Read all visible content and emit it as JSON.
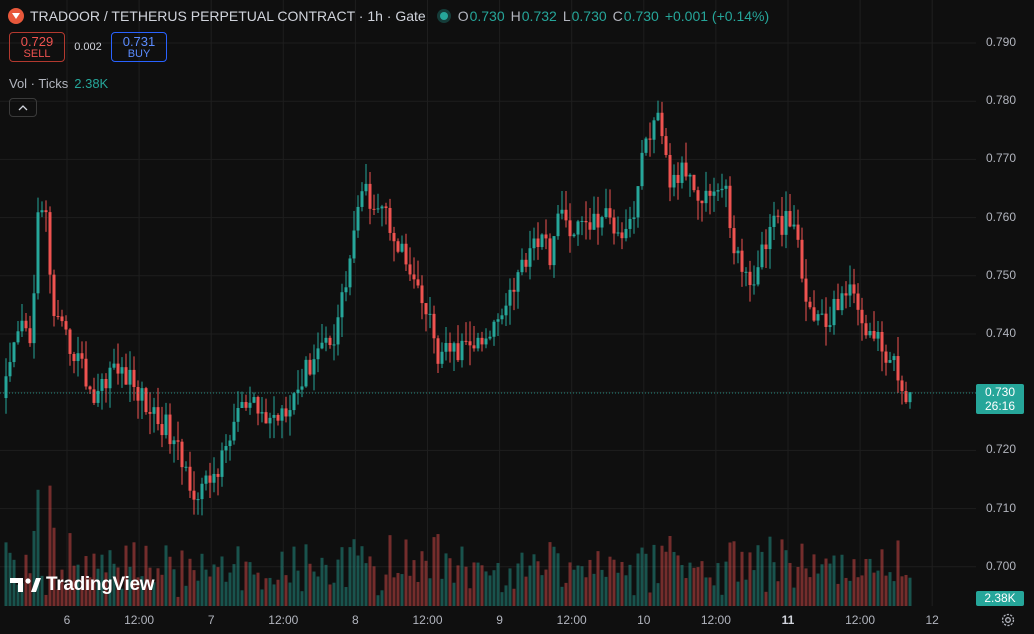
{
  "header": {
    "title": "TRADOOR / TETHERUS PERPETUAL CONTRACT · 1h · Gate",
    "logo_icon": "tradoor-logo-icon",
    "status_icon": "live-dot-icon",
    "ohlc": [
      {
        "label": "O",
        "value": "0.730"
      },
      {
        "label": "H",
        "value": "0.732"
      },
      {
        "label": "L",
        "value": "0.730"
      },
      {
        "label": "C",
        "value": "0.730"
      }
    ],
    "change": "+0.001 (+0.14%)"
  },
  "trade": {
    "sell_price": "0.729",
    "sell_label": "SELL",
    "spread": "0.002",
    "buy_price": "0.731",
    "buy_label": "BUY"
  },
  "volume_legend": {
    "name": "Vol · Ticks",
    "value": "2.38K"
  },
  "watermark": "TradingView",
  "price_axis": {
    "labels": [
      "0.790",
      "0.780",
      "0.770",
      "0.760",
      "0.750",
      "0.740",
      "0.730",
      "0.720",
      "0.710",
      "0.700"
    ],
    "current_price": "0.730",
    "countdown": "26:16",
    "volume_value": "2.38K"
  },
  "time_axis": {
    "labels": [
      {
        "text": "6",
        "bold": false
      },
      {
        "text": "12:00",
        "bold": false
      },
      {
        "text": "7",
        "bold": false
      },
      {
        "text": "12:00",
        "bold": false
      },
      {
        "text": "8",
        "bold": false
      },
      {
        "text": "12:00",
        "bold": false
      },
      {
        "text": "9",
        "bold": false
      },
      {
        "text": "12:00",
        "bold": false
      },
      {
        "text": "10",
        "bold": false
      },
      {
        "text": "12:00",
        "bold": false
      },
      {
        "text": "11",
        "bold": true
      },
      {
        "text": "12:00",
        "bold": false
      },
      {
        "text": "12",
        "bold": false
      }
    ]
  },
  "colors": {
    "up": "#26a69a",
    "down": "#ef5350",
    "background": "#0f0f0f",
    "grid": "#1e1e1e"
  },
  "chart_data": {
    "type": "candlestick",
    "interval": "1h",
    "ylim": [
      0.697,
      0.792
    ],
    "anchors": [
      [
        0,
        0.731
      ],
      [
        4,
        0.742
      ],
      [
        6,
        0.738
      ],
      [
        8,
        0.76
      ],
      [
        10,
        0.76
      ],
      [
        12,
        0.742
      ],
      [
        14,
        0.74
      ],
      [
        18,
        0.736
      ],
      [
        22,
        0.729
      ],
      [
        26,
        0.734
      ],
      [
        30,
        0.733
      ],
      [
        36,
        0.727
      ],
      [
        40,
        0.724
      ],
      [
        44,
        0.718
      ],
      [
        48,
        0.712
      ],
      [
        50,
        0.714
      ],
      [
        54,
        0.718
      ],
      [
        58,
        0.727
      ],
      [
        62,
        0.727
      ],
      [
        66,
        0.725
      ],
      [
        70,
        0.728
      ],
      [
        74,
        0.732
      ],
      [
        78,
        0.738
      ],
      [
        82,
        0.74
      ],
      [
        85,
        0.749
      ],
      [
        88,
        0.762
      ],
      [
        90,
        0.764
      ],
      [
        94,
        0.762
      ],
      [
        98,
        0.756
      ],
      [
        102,
        0.748
      ],
      [
        106,
        0.742
      ],
      [
        108,
        0.736
      ],
      [
        112,
        0.737
      ],
      [
        116,
        0.738
      ],
      [
        120,
        0.738
      ],
      [
        124,
        0.745
      ],
      [
        128,
        0.75
      ],
      [
        132,
        0.757
      ],
      [
        136,
        0.754
      ],
      [
        138,
        0.76
      ],
      [
        142,
        0.758
      ],
      [
        146,
        0.759
      ],
      [
        150,
        0.76
      ],
      [
        154,
        0.758
      ],
      [
        157,
        0.761
      ],
      [
        160,
        0.774
      ],
      [
        163,
        0.776
      ],
      [
        166,
        0.766
      ],
      [
        170,
        0.768
      ],
      [
        174,
        0.764
      ],
      [
        178,
        0.765
      ],
      [
        180,
        0.764
      ],
      [
        182,
        0.755
      ],
      [
        186,
        0.748
      ],
      [
        190,
        0.756
      ],
      [
        192,
        0.759
      ],
      [
        196,
        0.759
      ],
      [
        198,
        0.755
      ],
      [
        200,
        0.745
      ],
      [
        204,
        0.742
      ],
      [
        206,
        0.742
      ],
      [
        209,
        0.748
      ],
      [
        212,
        0.746
      ],
      [
        216,
        0.74
      ],
      [
        220,
        0.737
      ],
      [
        224,
        0.731
      ],
      [
        226,
        0.73
      ]
    ],
    "volume_ylim": [
      0,
      6
    ],
    "volume_note": "Volume bars in thousands of ticks; latest 2.38K"
  }
}
